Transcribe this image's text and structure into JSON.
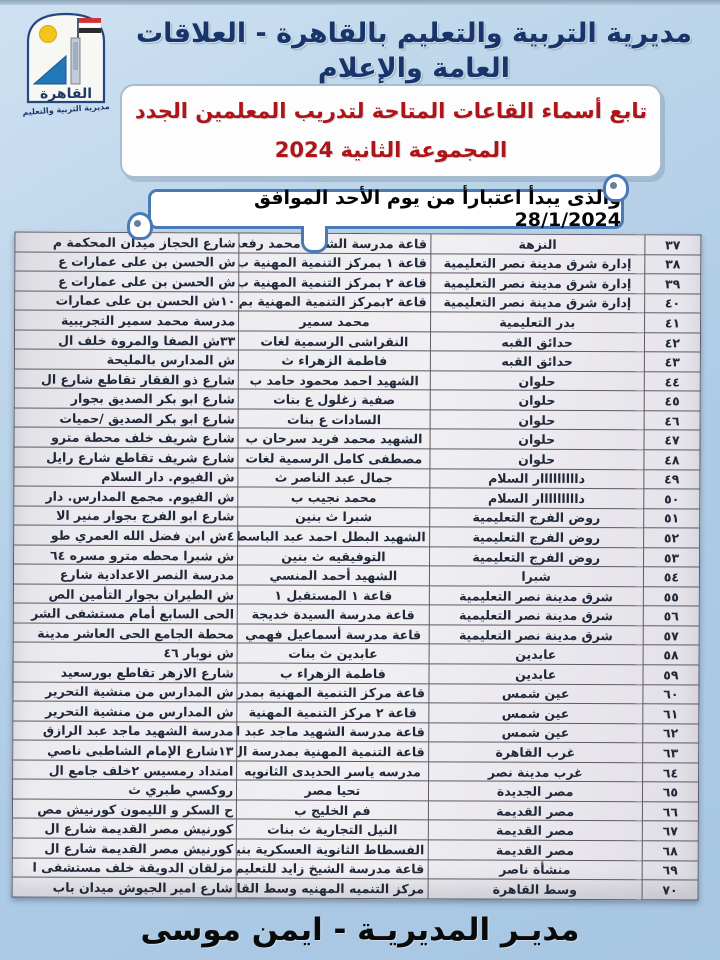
{
  "header": {
    "title": "مديرية التربية والتعليم بالقاهرة - العلاقات العامة والإعلام"
  },
  "logo": {
    "city_label": "القاهرة",
    "org_label": "مديرية التربية والتعليم"
  },
  "title_box": {
    "line1": "تابع أسماء القاعات المتاحة لتدريب المعلمين الجدد",
    "line2": "المجموعة الثانية 2024"
  },
  "banner": {
    "text": "والذى يبدأ اعتبارأ من يوم الأحد الموافق 28/1/2024"
  },
  "table": {
    "rows": [
      {
        "no": "٣٧",
        "district": "النزهة",
        "hall": "قاعة مدرسة الشهيد محمد رفعت",
        "address": "شارع الحجاز ميدان المحكمة م"
      },
      {
        "no": "٣٨",
        "district": "إدارة شرق مدينة نصر التعليمية",
        "hall": "قاعة ١ بمركز التنمية المهنية ب",
        "address": "ش الحسن بن على عمارات ع"
      },
      {
        "no": "٣٩",
        "district": "إدارة شرق مدينة نصر التعليمية",
        "hall": "قاعة ٢ بمركز التنمية المهنية ب",
        "address": "ش الحسن بن على عمارات ع"
      },
      {
        "no": "٤٠",
        "district": "إدارة شرق مدينة نصر التعليمية",
        "hall": "قاعة ٢بمركز التنمية المهنية بم",
        "address": "١٠ش الحسن بن على عمارات"
      },
      {
        "no": "٤١",
        "district": "بدر التعليمية",
        "hall": "محمد سمير",
        "address": "مدرسة محمد سمير التجريبية"
      },
      {
        "no": "٤٢",
        "district": "حدائق القبه",
        "hall": "النقراشى الرسمية لغات",
        "address": "٣٣ش الصفا والمروة خلف ال"
      },
      {
        "no": "٤٣",
        "district": "حدائق القبه",
        "hall": "فاطمة الزهراء ث",
        "address": "ش المدارس بالمليحة"
      },
      {
        "no": "٤٤",
        "district": "حلوان",
        "hall": "الشهيد احمد محمود حامد ب",
        "address": "شارع ذو الفقار تقاطع شارع ال"
      },
      {
        "no": "٤٥",
        "district": "حلوان",
        "hall": "صفية زغلول ع بنات",
        "address": "شارع ابو بكر الصديق بجوار"
      },
      {
        "no": "٤٦",
        "district": "حلوان",
        "hall": "السادات ع بنات",
        "address": "شارع ابو بكر الصديق /حميات"
      },
      {
        "no": "٤٧",
        "district": "حلوان",
        "hall": "الشهيد محمد فريد سرحان ب",
        "address": "شارع شريف خلف محطة مترو"
      },
      {
        "no": "٤٨",
        "district": "حلوان",
        "hall": "مصطفى كامل الرسمية لغات",
        "address": "شارع شريف تقاطع شارع رايل"
      },
      {
        "no": "٤٩",
        "district": "دااااااااار السلام",
        "hall": "جمال عبد الناصر ث",
        "address": "ش الفيوم. دار السلام"
      },
      {
        "no": "٥٠",
        "district": "دااااااااار السلام",
        "hall": "محمد نجيب ب",
        "address": "ش الفيوم. مجمع المدارس. دار"
      },
      {
        "no": "٥١",
        "district": "روض الفرج التعليمية",
        "hall": "شبرا ث بنين",
        "address": "شارع ابو الفرج بجوار منير الا"
      },
      {
        "no": "٥٢",
        "district": "روض الفرج التعليمية",
        "hall": "الشهيد البطل احمد عبد الباسط",
        "address": "٤ش ابن فضل الله العمري طو"
      },
      {
        "no": "٥٣",
        "district": "روض الفرج التعليمية",
        "hall": "التوفيقيه ث بنين",
        "address": "ش شبرا محطه مترو مسره ٦٤"
      },
      {
        "no": "٥٤",
        "district": "شبرا",
        "hall": "الشهيد أحمد المنسي",
        "address": "مدرسة النصر الاعدادية شارع"
      },
      {
        "no": "٥٥",
        "district": "شرق مدينة نصر التعليمية",
        "hall": "قاعة ١ المستقبل ١",
        "address": "ش الطيران بجوار التأمين الص"
      },
      {
        "no": "٥٦",
        "district": "شرق مدينة نصر التعليمية",
        "hall": "قاعة مدرسة السيدة خديجة",
        "address": "الحى السابع أمام مستشفى الشر"
      },
      {
        "no": "٥٧",
        "district": "شرق مدينة نصر التعليمية",
        "hall": "قاعة مدرسة أسماعيل فهمي",
        "address": "محطة الجامع الحى العاشر مدينة"
      },
      {
        "no": "٥٨",
        "district": "عابدين",
        "hall": "عابدين ث بنات",
        "address": "ش نوبار ٤٦"
      },
      {
        "no": "٥٩",
        "district": "عابدين",
        "hall": "فاطمة الزهراء ب",
        "address": "شارع الازهر تقاطع بورسعيد"
      },
      {
        "no": "٦٠",
        "district": "عين شمس",
        "hall": "قاعة مركز التنمية المهنية بمدر",
        "address": "ش المدارس من منشية التحرير"
      },
      {
        "no": "٦١",
        "district": "عين شمس",
        "hall": "قاعة ٢ مركز التنمية المهنية",
        "address": "ش المدارس من منشية التحرير"
      },
      {
        "no": "٦٢",
        "district": "عين شمس",
        "hall": "قاعة مدرسة الشهيد ماجد عبد ا",
        "address": "مدرسة الشهيد ماجد عبد الرازق"
      },
      {
        "no": "٦٣",
        "district": "غرب القاهرة",
        "hall": "قاعة التنمية المهنية بمدرسة ال",
        "address": "١٣شارع الإمام الشاطبى ناصي"
      },
      {
        "no": "٦٤",
        "district": "غرب مدينة نصر",
        "hall": "مدرسه ياسر الحديدى الثانويه",
        "address": "امتداد رمسيس ٢خلف جامع ال"
      },
      {
        "no": "٦٥",
        "district": "مصر الجديدة",
        "hall": "تحيا مصر",
        "address": "روكسي طبري ث"
      },
      {
        "no": "٦٦",
        "district": "مصر القديمة",
        "hall": "فم الخليج ب",
        "address": "ح السكر و الليمون كورنيش مص"
      },
      {
        "no": "٦٧",
        "district": "مصر القديمة",
        "hall": "النيل التجارية ث بنات",
        "address": "كورنيش مصر القديمة شارع ال"
      },
      {
        "no": "٦٨",
        "district": "مصر القديمة",
        "hall": "الفسطاط الثانوية العسكرية بنين",
        "address": "كورنيش مصر القديمة شارع ال"
      },
      {
        "no": "٦٩",
        "district": "منشأة ناصر",
        "hall": "قاعة مدرسة الشيخ زايد للتعليم",
        "address": "مزلقان الدويقة خلف مستشفى ا"
      },
      {
        "no": "٧٠",
        "district": "وسط القاهرة",
        "hall": "مركز التنميه المهنيه وسط القاه",
        "address": "شارع امير الجيوش ميدان باب"
      }
    ]
  },
  "footer": {
    "signature": "مديـر المديريـة - ايمن موسى"
  },
  "colors": {
    "background": "#aecbe6",
    "header_text": "#17356b",
    "title_text": "#b01418",
    "banner_border": "#4a7ab5",
    "paper": "#ecebef"
  }
}
